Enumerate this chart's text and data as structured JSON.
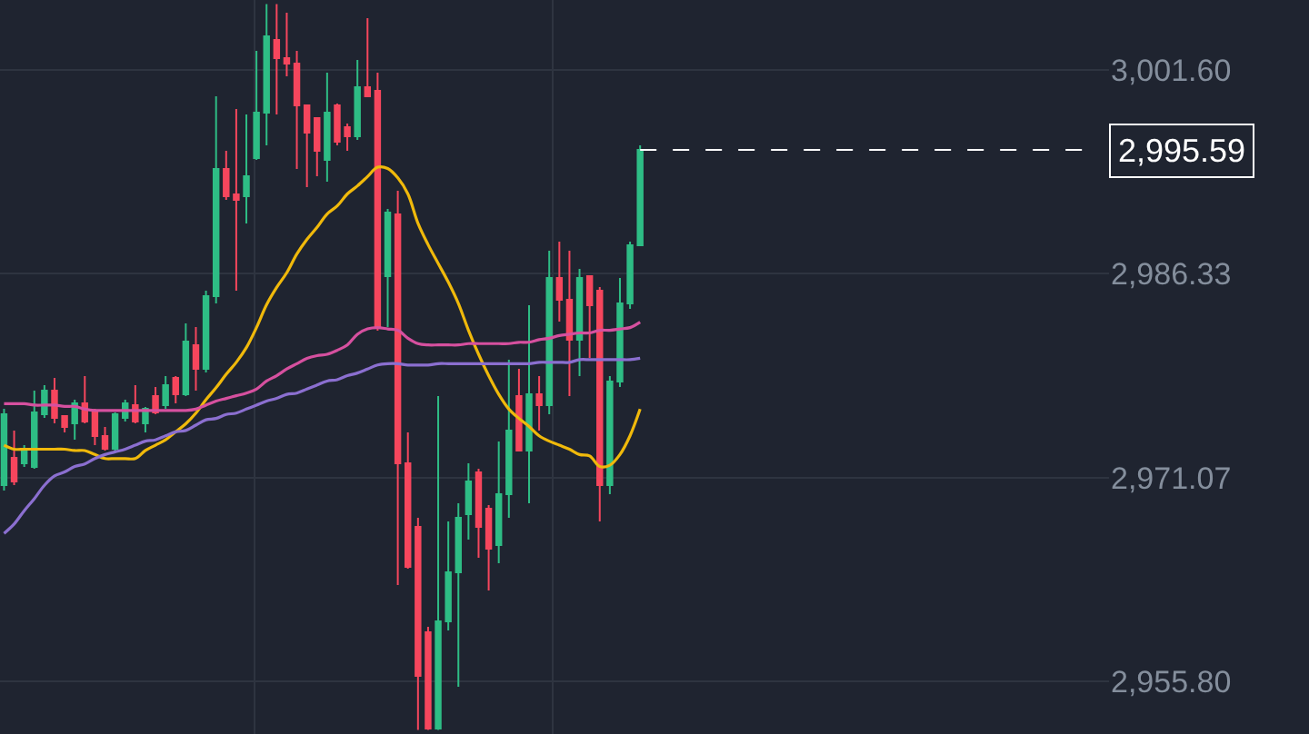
{
  "chart_data": {
    "type": "candlestick",
    "categories": [
      null,
      null,
      null,
      null,
      null,
      null,
      null,
      null,
      null,
      null,
      null,
      null,
      null,
      null,
      null,
      null,
      null,
      null,
      null,
      null,
      null,
      null,
      null,
      null,
      null,
      null,
      null,
      null,
      null,
      null,
      null,
      null,
      null,
      null,
      null,
      null,
      null,
      null,
      null,
      null,
      null,
      null,
      null,
      null,
      null,
      null,
      null,
      null,
      null,
      null,
      null,
      null,
      null,
      null,
      null,
      null,
      null,
      null,
      null,
      null,
      null,
      null,
      null,
      null
    ],
    "ohlc": [
      [
        2970.51,
        2976.22,
        2970.11,
        2975.82
      ],
      [
        2972.55,
        2974.59,
        2970.51,
        2970.79
      ],
      [
        2972.14,
        2973.5,
        2971.87,
        2973.1
      ],
      [
        2971.87,
        2977.58,
        2971.74,
        2975.95
      ],
      [
        2975.82,
        2977.99,
        2975.54,
        2977.58
      ],
      [
        2977.58,
        2978.53,
        2975.14,
        2975.54
      ],
      [
        2975.68,
        2975.68,
        2974.45,
        2974.86
      ],
      [
        2975.14,
        2976.9,
        2973.91,
        2976.63
      ],
      [
        2976.63,
        2978.67,
        2975.14,
        2975.27
      ],
      [
        2975.95,
        2976.22,
        2973.5,
        2974.18
      ],
      [
        2974.18,
        2974.86,
        2973.1,
        2973.23
      ],
      [
        2973.23,
        2975.95,
        2973.1,
        2975.82
      ],
      [
        2975.54,
        2976.9,
        2975.27,
        2976.63
      ],
      [
        2976.49,
        2977.99,
        2975.14,
        2975.27
      ],
      [
        2975.14,
        2976.36,
        2974.45,
        2976.22
      ],
      [
        2977.17,
        2977.85,
        2975.82,
        2975.95
      ],
      [
        2976.49,
        2978.67,
        2976.22,
        2977.99
      ],
      [
        2978.53,
        2978.67,
        2976.63,
        2977.31
      ],
      [
        2977.31,
        2982.61,
        2977.17,
        2981.25
      ],
      [
        2980.98,
        2982.34,
        2977.58,
        2979.21
      ],
      [
        2979.21,
        2985.06,
        2978.94,
        2984.65
      ],
      [
        2984.65,
        2999.6,
        2984.11,
        2994.17
      ],
      [
        2994.17,
        2995.53,
        2991.86,
        2992.13
      ],
      [
        2992.26,
        2998.65,
        2985.06,
        2991.86
      ],
      [
        2992.13,
        2998.25,
        2990.09,
        2993.62
      ],
      [
        2994.98,
        3003.0,
        2994.85,
        2998.38
      ],
      [
        2998.38,
        3006.5,
        2995.93,
        3004.09
      ],
      [
        3003.82,
        3006.5,
        2998.25,
        3002.46
      ],
      [
        3002.46,
        3005.86,
        3001.1,
        3002.05
      ],
      [
        3002.05,
        3003.0,
        2994.17,
        2998.92
      ],
      [
        2998.92,
        2998.92,
        2992.81,
        2996.89
      ],
      [
        2997.97,
        2997.97,
        2993.62,
        2995.53
      ],
      [
        2994.85,
        3001.37,
        2993.22,
        2998.38
      ],
      [
        2998.92,
        2999.06,
        2995.93,
        2996.21
      ],
      [
        2997.29,
        2997.57,
        2995.53,
        2996.61
      ],
      [
        2996.61,
        3002.32,
        2996.34,
        3000.28
      ],
      [
        3000.28,
        3005.45,
        2999.6,
        2999.6
      ],
      [
        3000.01,
        3001.37,
        2982.07,
        2982.34
      ],
      [
        2986.15,
        2991.18,
        2982.34,
        2990.9
      ],
      [
        2990.77,
        2992.54,
        2963.04,
        2972.14
      ],
      [
        2972.14,
        2974.45,
        2964.26,
        2964.4
      ],
      [
        2967.39,
        2968.07,
        2952.2,
        2956.24
      ],
      [
        2959.5,
        2959.91,
        2952.2,
        2952.3
      ],
      [
        2952.3,
        2977.17,
        2952.2,
        2960.32
      ],
      [
        2960.32,
        2967.79,
        2959.64,
        2963.99
      ],
      [
        2963.99,
        2969.15,
        2955.42,
        2968.07
      ],
      [
        2968.34,
        2972.14,
        2966.44,
        2970.79
      ],
      [
        2971.46,
        2971.74,
        2965.08,
        2967.39
      ],
      [
        2968.75,
        2969.02,
        2962.63,
        2965.76
      ],
      [
        2966.03,
        2973.78,
        2964.67,
        2969.83
      ],
      [
        2969.83,
        2979.89,
        2968.07,
        2974.59
      ],
      [
        2977.17,
        2979.21,
        2973.1,
        2973.1
      ],
      [
        2973.1,
        2983.97,
        2969.15,
        2977.31
      ],
      [
        2977.31,
        2978.67,
        2974.59,
        2976.49
      ],
      [
        2976.49,
        2988.05,
        2975.82,
        2986.01
      ],
      [
        2986.01,
        2988.73,
        2982.75,
        2984.38
      ],
      [
        2984.38,
        2988.05,
        2977.17,
        2981.39
      ],
      [
        2981.39,
        2986.69,
        2978.67,
        2986.01
      ],
      [
        2986.15,
        2986.15,
        2980.03,
        2983.97
      ],
      [
        2985.06,
        2985.33,
        2967.79,
        2970.51
      ],
      [
        2970.51,
        2978.67,
        2969.83,
        2978.26
      ],
      [
        2978.26,
        2986.01,
        2977.85,
        2984.11
      ],
      [
        2984.11,
        2988.73,
        2983.7,
        2988.46
      ],
      [
        2988.46,
        2995.93,
        2988.46,
        2995.59
      ]
    ],
    "colors": [
      "#2ebd85",
      "#f6465d",
      "#2ebd85",
      "#2ebd85",
      "#2ebd85",
      "#f6465d",
      "#f6465d",
      "#2ebd85",
      "#f6465d",
      "#f6465d",
      "#f6465d",
      "#2ebd85",
      "#2ebd85",
      "#f6465d",
      "#2ebd85",
      "#f6465d",
      "#2ebd85",
      "#f6465d",
      "#2ebd85",
      "#f6465d",
      "#2ebd85",
      "#2ebd85",
      "#f6465d",
      "#f6465d",
      "#2ebd85",
      "#2ebd85",
      "#2ebd85",
      "#f6465d",
      "#f6465d",
      "#f6465d",
      "#f6465d",
      "#f6465d",
      "#2ebd85",
      "#f6465d",
      "#f6465d",
      "#2ebd85",
      "#f6465d",
      "#f6465d",
      "#2ebd85",
      "#f6465d",
      "#f6465d",
      "#f6465d",
      "#f6465d",
      "#2ebd85",
      "#2ebd85",
      "#2ebd85",
      "#2ebd85",
      "#f6465d",
      "#f6465d",
      "#2ebd85",
      "#2ebd85",
      "#f6465d",
      "#2ebd85",
      "#f6465d",
      "#2ebd85",
      "#f6465d",
      "#f6465d",
      "#2ebd85",
      "#f6465d",
      "#f6465d",
      "#2ebd85",
      "#2ebd85",
      "#2ebd85",
      "#2ebd85"
    ],
    "series": [
      {
        "type": "line",
        "color": "#f0b90b",
        "values": [
          2973.5,
          2973.2,
          2973.2,
          2973.2,
          2973.2,
          2973.2,
          2973.2,
          2973.1,
          2973.1,
          2972.8,
          2972.5,
          2972.5,
          2972.5,
          2972.5,
          2973.1,
          2973.5,
          2973.9,
          2974.5,
          2975.1,
          2975.9,
          2976.9,
          2977.8,
          2978.8,
          2979.7,
          2980.8,
          2982.3,
          2984.0,
          2985.3,
          2986.4,
          2987.8,
          2988.9,
          2989.8,
          2990.8,
          2991.4,
          2992.3,
          2992.9,
          2993.6,
          2994.3,
          2994.2,
          2993.5,
          2992.3,
          2990.1,
          2988.5,
          2987.1,
          2985.7,
          2984.1,
          2982.1,
          2980.3,
          2978.7,
          2977.3,
          2976.2,
          2975.5,
          2974.9,
          2974.2,
          2973.8,
          2973.5,
          2973.2,
          2972.8,
          2972.7,
          2971.9,
          2972.0,
          2972.8,
          2974.2,
          2976.2
        ]
      },
      {
        "type": "line",
        "color": "#d6509f",
        "values": [
          2976.6,
          2976.6,
          2976.6,
          2976.5,
          2976.5,
          2976.5,
          2976.4,
          2976.4,
          2976.2,
          2976.1,
          2976.1,
          2976.1,
          2976.1,
          2976.1,
          2976.1,
          2976.1,
          2976.1,
          2976.1,
          2976.1,
          2976.2,
          2976.5,
          2976.8,
          2977.0,
          2977.2,
          2977.4,
          2977.7,
          2978.3,
          2978.7,
          2979.2,
          2979.6,
          2980.0,
          2980.2,
          2980.3,
          2980.6,
          2981.0,
          2981.8,
          2982.2,
          2982.3,
          2982.2,
          2982.1,
          2981.5,
          2981.1,
          2981.0,
          2981.0,
          2981.0,
          2981.0,
          2981.1,
          2981.1,
          2981.1,
          2981.1,
          2981.1,
          2981.2,
          2981.2,
          2981.4,
          2981.5,
          2981.7,
          2981.8,
          2981.9,
          2981.9,
          2982.1,
          2982.1,
          2982.2,
          2982.3,
          2982.7
        ]
      },
      {
        "type": "line",
        "color": "#8b6fd0",
        "values": [
          2966.9,
          2967.6,
          2968.6,
          2969.5,
          2970.5,
          2971.2,
          2971.5,
          2971.9,
          2972.1,
          2972.5,
          2972.8,
          2973.0,
          2973.2,
          2973.5,
          2973.8,
          2973.9,
          2974.2,
          2974.5,
          2974.6,
          2975.0,
          2975.4,
          2975.5,
          2975.8,
          2975.9,
          2976.2,
          2976.5,
          2976.8,
          2977.0,
          2977.3,
          2977.4,
          2977.7,
          2978.0,
          2978.3,
          2978.4,
          2978.7,
          2978.9,
          2979.2,
          2979.5,
          2979.6,
          2979.6,
          2979.5,
          2979.5,
          2979.5,
          2979.6,
          2979.6,
          2979.6,
          2979.6,
          2979.6,
          2979.6,
          2979.6,
          2979.6,
          2979.6,
          2979.6,
          2979.7,
          2979.7,
          2979.7,
          2979.7,
          2979.9,
          2979.9,
          2979.9,
          2979.9,
          2979.9,
          2979.9,
          2980.0
        ]
      }
    ],
    "ylim": [
      2951.89,
      3006.81
    ],
    "yticks": [
      {
        "value": 3001.6,
        "label": "3,001.60"
      },
      {
        "value": 2986.33,
        "label": "2,986.33"
      },
      {
        "value": 2971.07,
        "label": "2,971.07"
      },
      {
        "value": 2955.8,
        "label": "2,955.80"
      }
    ],
    "ref_lines": [
      {
        "axis": "y",
        "value": 2995.59,
        "label": "2,995.59",
        "color": "#ffffff",
        "line_style": "dashed"
      }
    ],
    "grid": true,
    "tick_labels": "y"
  }
}
